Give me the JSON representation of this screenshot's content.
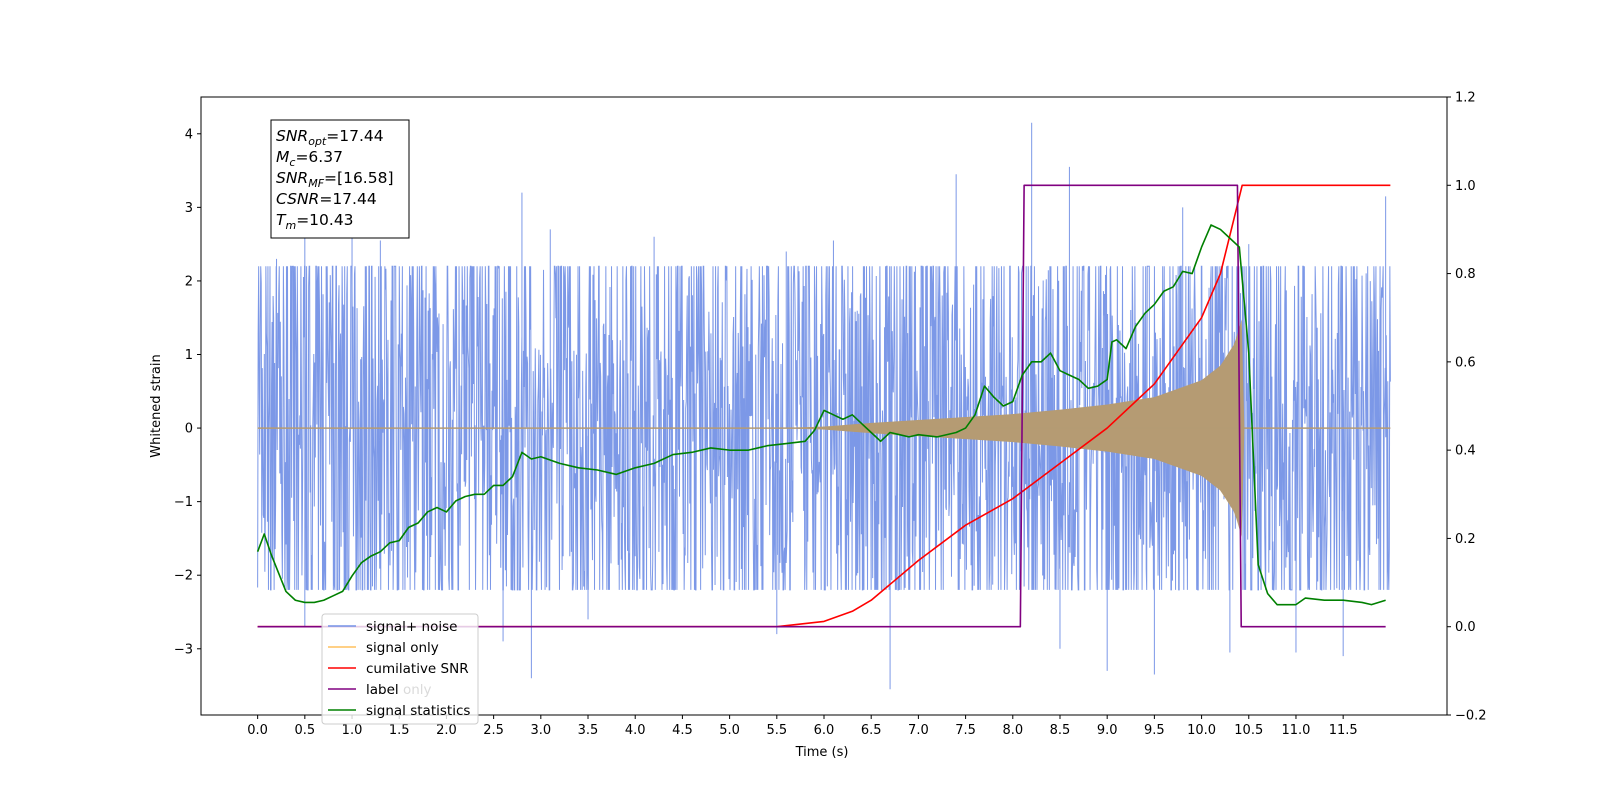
{
  "chart_data": {
    "type": "line",
    "xlabel": "Time (s)",
    "ylabel": "Whitened strain",
    "xlim": [
      -0.6,
      12.6
    ],
    "ylim": [
      -3.9,
      4.5
    ],
    "y2lim": [
      -0.2,
      1.2
    ],
    "x_ticks": [
      "0.0",
      "0.5",
      "1.0",
      "1.5",
      "2.0",
      "2.5",
      "3.0",
      "3.5",
      "4.0",
      "4.5",
      "5.0",
      "5.5",
      "6.0",
      "6.5",
      "7.0",
      "7.5",
      "8.0",
      "8.5",
      "9.0",
      "9.5",
      "10.0",
      "10.5",
      "11.0",
      "11.5"
    ],
    "y_ticks": [
      "−3",
      "−2",
      "−1",
      "0",
      "1",
      "2",
      "3",
      "4"
    ],
    "y2_ticks": [
      "−0.2",
      "0.0",
      "0.2",
      "0.4",
      "0.6",
      "0.8",
      "1.0",
      "1.2"
    ],
    "info_box": [
      {
        "sym": "SNR",
        "sub": "opt",
        "value": "=17.44"
      },
      {
        "sym": "M",
        "sub": "c",
        "value": "=6.37"
      },
      {
        "sym": "SNR",
        "sub": "MF",
        "value": "=[16.58]"
      },
      {
        "sym": "CSNR",
        "sub": "",
        "value": "=17.44"
      },
      {
        "sym": "T",
        "sub": "m",
        "value": "=10.43"
      }
    ],
    "legend": {
      "placement": "lower-left",
      "entries": [
        "signal+ noise",
        "signal only",
        "cumilative SNR",
        "label",
        "signal statistics"
      ],
      "ghost_text": "label only"
    },
    "series": [
      {
        "name": "signal+ noise",
        "axis": "left",
        "color": "#7592e6",
        "x_range": [
          0.0,
          12.0
        ],
        "typical_amplitude": 2.2,
        "peaks": [
          [
            0.2,
            2.3
          ],
          [
            0.5,
            2.7
          ],
          [
            1.0,
            2.6
          ],
          [
            1.3,
            2.55
          ],
          [
            2.8,
            3.2
          ],
          [
            3.1,
            2.7
          ],
          [
            4.2,
            2.6
          ],
          [
            5.6,
            2.4
          ],
          [
            6.1,
            2.55
          ],
          [
            7.4,
            3.45
          ],
          [
            8.2,
            4.15
          ],
          [
            8.6,
            3.55
          ],
          [
            9.8,
            3.0
          ],
          [
            10.5,
            2.5
          ],
          [
            11.95,
            3.15
          ]
        ],
        "troughs": [
          [
            0.5,
            -2.7
          ],
          [
            2.6,
            -2.9
          ],
          [
            2.9,
            -3.4
          ],
          [
            3.5,
            -2.6
          ],
          [
            5.5,
            -2.8
          ],
          [
            6.7,
            -3.55
          ],
          [
            8.5,
            -3.0
          ],
          [
            9.0,
            -3.3
          ],
          [
            9.5,
            -3.35
          ],
          [
            10.3,
            -3.05
          ],
          [
            11.0,
            -3.05
          ],
          [
            11.5,
            -3.1
          ]
        ]
      },
      {
        "name": "signal only",
        "axis": "left",
        "color": "#ffc15e",
        "fill_color": "#b59b73",
        "envelope": [
          [
            0.0,
            0.0
          ],
          [
            5.5,
            0.0
          ],
          [
            6.0,
            0.02
          ],
          [
            6.5,
            0.07
          ],
          [
            7.0,
            0.11
          ],
          [
            7.5,
            0.15
          ],
          [
            8.0,
            0.19
          ],
          [
            8.5,
            0.25
          ],
          [
            9.0,
            0.32
          ],
          [
            9.5,
            0.42
          ],
          [
            10.0,
            0.65
          ],
          [
            10.2,
            0.85
          ],
          [
            10.35,
            1.15
          ],
          [
            10.43,
            1.5
          ],
          [
            10.45,
            0.0
          ],
          [
            12.0,
            0.0
          ]
        ]
      },
      {
        "name": "cumilative SNR",
        "axis": "right",
        "color": "#ff0000",
        "points": [
          [
            0.0,
            0.0
          ],
          [
            5.5,
            0.0
          ],
          [
            6.0,
            0.012
          ],
          [
            6.3,
            0.035
          ],
          [
            6.5,
            0.06
          ],
          [
            7.0,
            0.15
          ],
          [
            7.5,
            0.23
          ],
          [
            8.0,
            0.29
          ],
          [
            8.5,
            0.37
          ],
          [
            9.0,
            0.45
          ],
          [
            9.5,
            0.55
          ],
          [
            10.0,
            0.7
          ],
          [
            10.2,
            0.8
          ],
          [
            10.35,
            0.93
          ],
          [
            10.43,
            1.0
          ],
          [
            12.0,
            1.0
          ]
        ]
      },
      {
        "name": "label",
        "axis": "right",
        "color": "#800080",
        "points": [
          [
            0.0,
            0.0
          ],
          [
            8.08,
            0.0
          ],
          [
            8.12,
            1.0
          ],
          [
            10.38,
            1.0
          ],
          [
            10.42,
            0.0
          ],
          [
            11.95,
            0.0
          ]
        ]
      },
      {
        "name": "signal statistics",
        "axis": "right",
        "color": "#008000",
        "points": [
          [
            0.0,
            0.17
          ],
          [
            0.07,
            0.21
          ],
          [
            0.15,
            0.16
          ],
          [
            0.3,
            0.08
          ],
          [
            0.4,
            0.06
          ],
          [
            0.5,
            0.055
          ],
          [
            0.6,
            0.055
          ],
          [
            0.7,
            0.06
          ],
          [
            0.8,
            0.07
          ],
          [
            0.9,
            0.08
          ],
          [
            1.0,
            0.115
          ],
          [
            1.1,
            0.145
          ],
          [
            1.2,
            0.16
          ],
          [
            1.3,
            0.17
          ],
          [
            1.4,
            0.19
          ],
          [
            1.5,
            0.195
          ],
          [
            1.6,
            0.225
          ],
          [
            1.7,
            0.235
          ],
          [
            1.8,
            0.26
          ],
          [
            1.9,
            0.27
          ],
          [
            2.0,
            0.26
          ],
          [
            2.1,
            0.285
          ],
          [
            2.2,
            0.295
          ],
          [
            2.3,
            0.3
          ],
          [
            2.4,
            0.3
          ],
          [
            2.5,
            0.32
          ],
          [
            2.6,
            0.32
          ],
          [
            2.7,
            0.34
          ],
          [
            2.8,
            0.395
          ],
          [
            2.9,
            0.38
          ],
          [
            3.0,
            0.385
          ],
          [
            3.2,
            0.37
          ],
          [
            3.4,
            0.36
          ],
          [
            3.6,
            0.355
          ],
          [
            3.8,
            0.345
          ],
          [
            4.0,
            0.36
          ],
          [
            4.2,
            0.37
          ],
          [
            4.4,
            0.39
          ],
          [
            4.6,
            0.395
          ],
          [
            4.8,
            0.405
          ],
          [
            5.0,
            0.4
          ],
          [
            5.2,
            0.4
          ],
          [
            5.4,
            0.41
          ],
          [
            5.6,
            0.415
          ],
          [
            5.8,
            0.42
          ],
          [
            5.9,
            0.445
          ],
          [
            6.0,
            0.49
          ],
          [
            6.1,
            0.48
          ],
          [
            6.2,
            0.47
          ],
          [
            6.3,
            0.48
          ],
          [
            6.4,
            0.46
          ],
          [
            6.5,
            0.44
          ],
          [
            6.6,
            0.42
          ],
          [
            6.7,
            0.44
          ],
          [
            6.8,
            0.435
          ],
          [
            6.9,
            0.43
          ],
          [
            7.0,
            0.435
          ],
          [
            7.2,
            0.43
          ],
          [
            7.4,
            0.44
          ],
          [
            7.5,
            0.45
          ],
          [
            7.6,
            0.48
          ],
          [
            7.7,
            0.545
          ],
          [
            7.8,
            0.52
          ],
          [
            7.9,
            0.5
          ],
          [
            8.0,
            0.51
          ],
          [
            8.1,
            0.57
          ],
          [
            8.2,
            0.6
          ],
          [
            8.3,
            0.6
          ],
          [
            8.4,
            0.62
          ],
          [
            8.5,
            0.58
          ],
          [
            8.6,
            0.57
          ],
          [
            8.7,
            0.56
          ],
          [
            8.8,
            0.54
          ],
          [
            8.9,
            0.545
          ],
          [
            9.0,
            0.56
          ],
          [
            9.05,
            0.645
          ],
          [
            9.1,
            0.65
          ],
          [
            9.2,
            0.63
          ],
          [
            9.3,
            0.68
          ],
          [
            9.4,
            0.71
          ],
          [
            9.5,
            0.73
          ],
          [
            9.6,
            0.76
          ],
          [
            9.7,
            0.77
          ],
          [
            9.8,
            0.805
          ],
          [
            9.9,
            0.8
          ],
          [
            10.0,
            0.86
          ],
          [
            10.1,
            0.91
          ],
          [
            10.2,
            0.9
          ],
          [
            10.3,
            0.88
          ],
          [
            10.4,
            0.86
          ],
          [
            10.5,
            0.62
          ],
          [
            10.6,
            0.14
          ],
          [
            10.7,
            0.075
          ],
          [
            10.8,
            0.05
          ],
          [
            11.0,
            0.05
          ],
          [
            11.1,
            0.065
          ],
          [
            11.3,
            0.06
          ],
          [
            11.5,
            0.06
          ],
          [
            11.7,
            0.055
          ],
          [
            11.8,
            0.05
          ],
          [
            11.95,
            0.06
          ]
        ]
      }
    ]
  }
}
